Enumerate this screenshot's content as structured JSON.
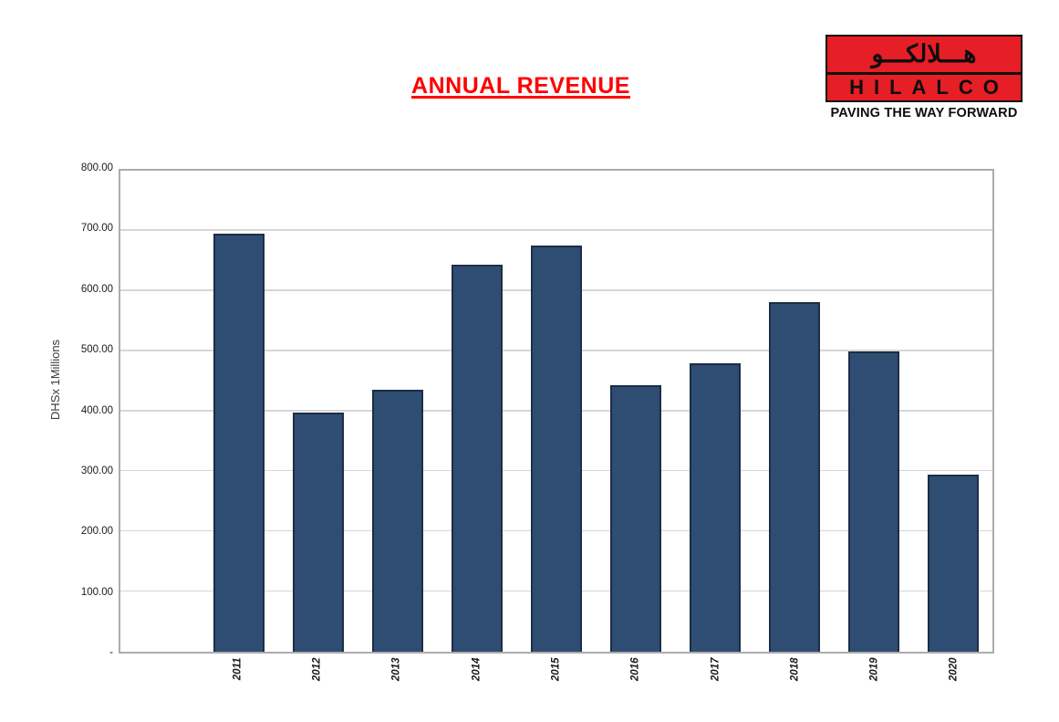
{
  "header": {
    "title": "ANNUAL REVENUE",
    "title_color": "#FF0000"
  },
  "logo": {
    "arabic_name": "هـــلالكـــو",
    "latin_name": "HILALCO",
    "tagline": "PAVING THE WAY FORWARD",
    "box_color": "#E61E25",
    "border_color": "#111111"
  },
  "chart_data": {
    "type": "bar",
    "title": "ANNUAL REVENUE",
    "categories": [
      "2011",
      "2012",
      "2013",
      "2014",
      "2015",
      "2016",
      "2017",
      "2018",
      "2019",
      "2020"
    ],
    "values": [
      695,
      398,
      435,
      643,
      675,
      443,
      480,
      581,
      500,
      295
    ],
    "xlabel": "",
    "ylabel": "DHSx 1Millions",
    "ylim": [
      0,
      800
    ],
    "y_tick_step": 100,
    "y_tick_labels": [
      "-",
      "100.00",
      "200.00",
      "300.00",
      "400.00",
      "500.00",
      "600.00",
      "700.00",
      "800.00"
    ],
    "x_tick_rotation": 90,
    "grid": true,
    "legend": "none",
    "leading_empty_slots": 1,
    "bar_color": "#2F4D73",
    "bar_border_color": "#1C2E45",
    "gridline_color": "#D6D6D6",
    "frame_color": "#ACACAC"
  }
}
